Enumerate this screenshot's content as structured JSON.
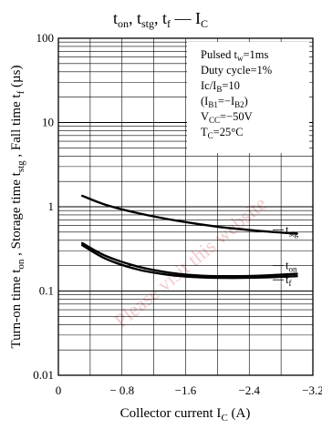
{
  "chart_data": {
    "type": "line",
    "title": "t_on, t_stg, t_f — I_C",
    "title_parts": {
      "t_on": "t",
      "t_on_sub": "on",
      "t_stg": "t",
      "t_stg_sub": "stg",
      "t_f": "t",
      "t_f_sub": "f",
      "dash": "—",
      "ic": "I",
      "ic_sub": "C"
    },
    "xlabel": "Collector current  I_C  (A)",
    "xlabel_parts": {
      "main": "Collector current  I",
      "sub": "C",
      "unit": "  (A)"
    },
    "ylabel": "Turn-on time t_on , Storage time t_stg , Fall time t_f  (µs)",
    "ylabel_parts": [
      "Turn-on time t",
      "on",
      " , Storage time t",
      "stg",
      " , Fall time t",
      "f",
      "  (µs)"
    ],
    "x_scale": "linear",
    "y_scale": "log",
    "xlim": [
      0,
      -3.2
    ],
    "ylim": [
      0.01,
      100
    ],
    "x_ticks": [
      0,
      -0.8,
      -1.6,
      -2.4,
      -3.2
    ],
    "x_tick_labels": [
      "0",
      "− 0.8",
      "−1.6",
      "−2.4",
      "−3.2"
    ],
    "y_ticks": [
      0.01,
      0.1,
      1,
      10,
      100
    ],
    "y_tick_labels": [
      "0.01",
      "0.1",
      "1",
      "10",
      "100"
    ],
    "grid": true,
    "conditions": {
      "l1": [
        "Pulsed t",
        "w",
        "=1ms"
      ],
      "l2": [
        "Duty cycle=1%"
      ],
      "l3": [
        "Ic/I",
        "B",
        "=10"
      ],
      "l4": [
        "(I",
        "B1",
        "=−I",
        "B2",
        ")"
      ],
      "l5": [
        "V",
        "CC",
        "=−50V"
      ],
      "l6": [
        "T",
        "C",
        "=25°C"
      ]
    },
    "series": [
      {
        "name": "t_stg",
        "label_main": "t",
        "label_sub": "stg",
        "x": [
          -0.3,
          -0.6,
          -1.0,
          -1.5,
          -2.0,
          -2.5,
          -3.0
        ],
        "y": [
          1.35,
          1.05,
          0.84,
          0.68,
          0.58,
          0.52,
          0.48
        ]
      },
      {
        "name": "t_on",
        "label_main": "t",
        "label_sub": "on",
        "x": [
          -0.3,
          -0.6,
          -1.0,
          -1.4,
          -1.8,
          -2.2,
          -2.6,
          -3.0
        ],
        "y": [
          0.37,
          0.26,
          0.195,
          0.165,
          0.152,
          0.15,
          0.153,
          0.16
        ]
      },
      {
        "name": "t_f",
        "label_main": "t",
        "label_sub": "f",
        "x": [
          -0.3,
          -0.6,
          -1.0,
          -1.4,
          -1.8,
          -2.2,
          -2.6,
          -3.0
        ],
        "y": [
          0.35,
          0.24,
          0.18,
          0.155,
          0.145,
          0.143,
          0.145,
          0.15
        ]
      }
    ]
  },
  "watermark": "Please visit this website"
}
